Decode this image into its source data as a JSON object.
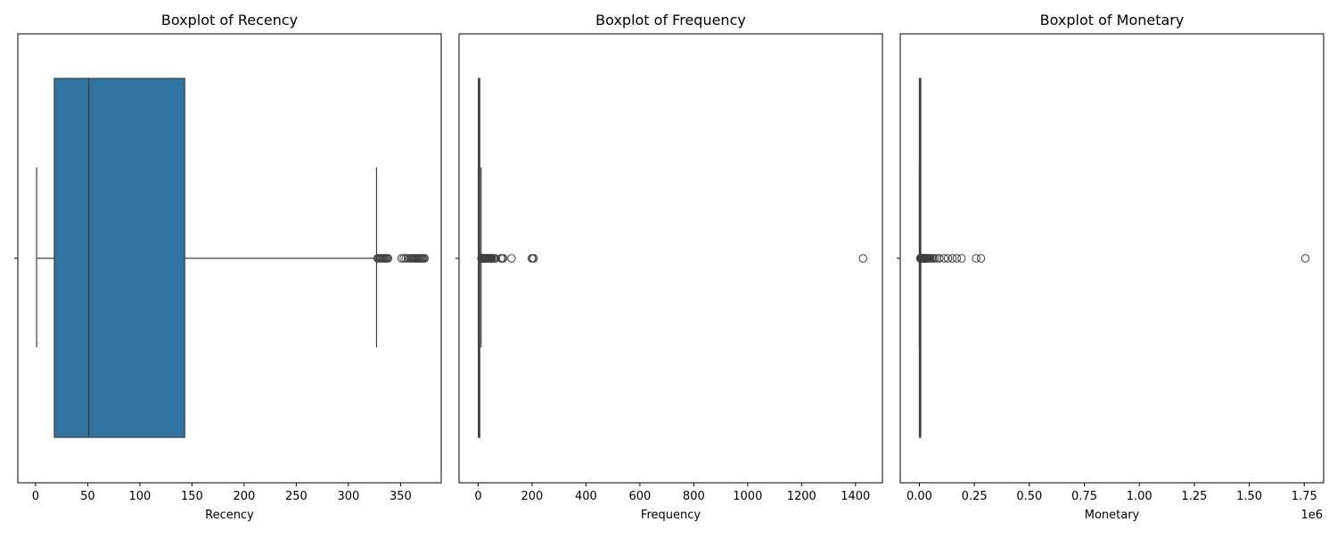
{
  "chart_data": [
    {
      "type": "boxplot",
      "title": "Boxplot of Recency",
      "xlabel": "Recency",
      "ylabel": "",
      "orientation": "horizontal",
      "xlim": [
        -17,
        389
      ],
      "xticks": [
        0,
        50,
        100,
        150,
        200,
        250,
        300,
        350
      ],
      "xtick_labels": [
        "0",
        "50",
        "100",
        "150",
        "200",
        "250",
        "300",
        "350"
      ],
      "box": {
        "whisker_low": 1,
        "q1": 18,
        "median": 51,
        "q3": 143,
        "whisker_high": 327
      },
      "outliers": [
        328,
        329,
        330,
        331,
        332,
        333,
        334,
        335,
        336,
        337,
        338,
        351,
        353,
        355,
        357,
        359,
        360,
        361,
        362,
        363,
        364,
        365,
        366,
        367,
        368,
        369,
        370,
        371,
        372,
        373
      ],
      "box_color": "#3274a1",
      "scale_note": ""
    },
    {
      "type": "boxplot",
      "title": "Boxplot of Frequency",
      "xlabel": "Frequency",
      "ylabel": "",
      "orientation": "horizontal",
      "xlim": [
        -71,
        1500
      ],
      "xticks": [
        0,
        200,
        400,
        600,
        800,
        1000,
        1200,
        1400
      ],
      "xtick_labels": [
        "0",
        "200",
        "400",
        "600",
        "800",
        "1000",
        "1200",
        "1400"
      ],
      "box": {
        "whisker_low": 1,
        "q1": 1,
        "median": 2,
        "q3": 5,
        "whisker_high": 11
      },
      "outliers": [
        12,
        13,
        14,
        15,
        16,
        17,
        18,
        20,
        22,
        24,
        26,
        28,
        30,
        32,
        34,
        36,
        38,
        40,
        42,
        44,
        46,
        48,
        50,
        55,
        60,
        63,
        85,
        88,
        93,
        124,
        199,
        201,
        206,
        1428
      ],
      "box_color": "#3274a1",
      "scale_note": ""
    },
    {
      "type": "boxplot",
      "title": "Boxplot of Monetary",
      "xlabel": "Monetary",
      "ylabel": "",
      "orientation": "horizontal",
      "xlim": [
        -87000,
        1838000
      ],
      "xticks": [
        0,
        250000,
        500000,
        750000,
        1000000,
        1250000,
        1500000,
        1750000
      ],
      "xtick_labels": [
        "0.00",
        "0.25",
        "0.50",
        "0.75",
        "1.00",
        "1.25",
        "1.50",
        "1.75"
      ],
      "box": {
        "whisker_low": 0,
        "q1": 300,
        "median": 700,
        "q3": 1700,
        "whisker_high": 3800
      },
      "outliers": [
        4000,
        5000,
        6000,
        7000,
        8000,
        9000,
        10000,
        11000,
        12000,
        13000,
        14000,
        15000,
        17000,
        19000,
        21000,
        23000,
        25000,
        27000,
        29000,
        31000,
        33000,
        35000,
        38000,
        41000,
        44000,
        48000,
        55000,
        62000,
        70000,
        80000,
        91000,
        113000,
        130000,
        150000,
        170000,
        192000,
        258000,
        280000,
        1755000
      ],
      "box_color": "#3274a1",
      "scale_note": "1e6"
    }
  ]
}
